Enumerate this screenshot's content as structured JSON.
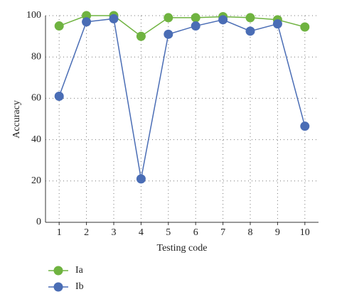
{
  "chart_data": {
    "type": "line",
    "x_label": "Testing code",
    "y_label": "Accuracy",
    "x": [
      1,
      2,
      3,
      4,
      5,
      6,
      7,
      8,
      9,
      10
    ],
    "series": [
      {
        "name": "Ia",
        "color": "#6fb340",
        "values": [
          95,
          100,
          100,
          90,
          99,
          99,
          99.5,
          99,
          98,
          94.5
        ]
      },
      {
        "name": "Ib",
        "color": "#4a6db5",
        "values": [
          61,
          97,
          98.5,
          21,
          91,
          95,
          98,
          92.5,
          96,
          46.5
        ]
      }
    ],
    "xlim": [
      0.5,
      10.5
    ],
    "xticks": [
      1,
      2,
      3,
      4,
      5,
      6,
      7,
      8,
      9,
      10
    ],
    "ylim": [
      0,
      100
    ],
    "yticks": [
      0,
      20,
      40,
      60,
      80,
      100
    ],
    "grid": true,
    "legend": "bottom-left"
  }
}
